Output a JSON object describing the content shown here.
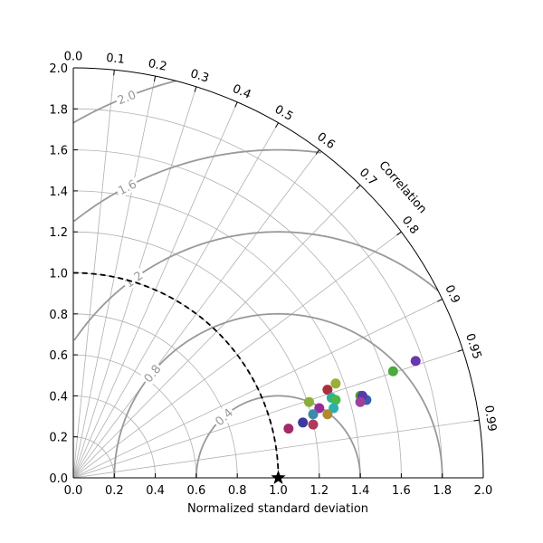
{
  "chart_data": {
    "type": "scatter",
    "subtype": "taylor-diagram",
    "xlabel": "Normalized standard deviation",
    "correlation_label": "Correlation",
    "std_range": [
      0.0,
      2.0
    ],
    "std_ticks": [
      "0.0",
      "0.2",
      "0.4",
      "0.6",
      "0.8",
      "1.0",
      "1.2",
      "1.4",
      "1.6",
      "1.8",
      "2.0"
    ],
    "correlation_ticks": [
      "0.0",
      "0.1",
      "0.2",
      "0.3",
      "0.4",
      "0.5",
      "0.6",
      "0.7",
      "0.8",
      "0.9",
      "0.95",
      "0.99"
    ],
    "correlation_grid": [
      0.0,
      0.1,
      0.2,
      0.3,
      0.4,
      0.5,
      0.6,
      0.7,
      0.8,
      0.9,
      0.95,
      0.99
    ],
    "std_grid": [
      0.2,
      0.4,
      0.6,
      0.8,
      1.0,
      1.2,
      1.4,
      1.6,
      1.8
    ],
    "rms_contours": [
      0.4,
      0.8,
      1.2,
      1.6,
      2.0
    ],
    "rms_labels": [
      "0.4",
      "0.8",
      "1.2",
      "1.6",
      "2.0"
    ],
    "reference": {
      "std": 1.0,
      "correlation": 1.0,
      "marker": "star",
      "color": "#000000"
    },
    "reference_arc": {
      "std": 1.0,
      "style": "dashed"
    },
    "grid": true,
    "points": [
      {
        "x": 1.67,
        "y": 0.57,
        "color": "#6a35b0"
      },
      {
        "x": 1.56,
        "y": 0.52,
        "color": "#4aaa3a"
      },
      {
        "x": 1.43,
        "y": 0.38,
        "color": "#3a5fb0"
      },
      {
        "x": 1.4,
        "y": 0.4,
        "color": "#4aaa3a"
      },
      {
        "x": 1.41,
        "y": 0.4,
        "color": "#5a3aa8"
      },
      {
        "x": 1.4,
        "y": 0.37,
        "color": "#a0409a"
      },
      {
        "x": 1.28,
        "y": 0.46,
        "color": "#9aae3a"
      },
      {
        "x": 1.24,
        "y": 0.43,
        "color": "#a8303a"
      },
      {
        "x": 1.26,
        "y": 0.39,
        "color": "#2ab0a0"
      },
      {
        "x": 1.28,
        "y": 0.38,
        "color": "#4ab84a"
      },
      {
        "x": 1.27,
        "y": 0.34,
        "color": "#2ab0b0"
      },
      {
        "x": 1.24,
        "y": 0.31,
        "color": "#b08a30"
      },
      {
        "x": 1.15,
        "y": 0.37,
        "color": "#8aae3a"
      },
      {
        "x": 1.2,
        "y": 0.34,
        "color": "#9a2a9a"
      },
      {
        "x": 1.17,
        "y": 0.31,
        "color": "#3a8aa8"
      },
      {
        "x": 1.12,
        "y": 0.27,
        "color": "#3a3aa0"
      },
      {
        "x": 1.17,
        "y": 0.26,
        "color": "#b03a5a"
      },
      {
        "x": 1.05,
        "y": 0.24,
        "color": "#a02a6a"
      }
    ]
  }
}
